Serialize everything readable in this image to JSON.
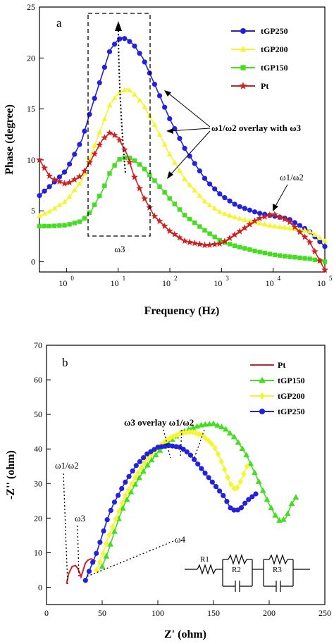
{
  "chart_data": [
    {
      "type": "line",
      "panel_label": "a",
      "xlabel": "Frequency (Hz)",
      "ylabel": "Phase (degree)",
      "xscale": "log",
      "xlim": [
        0.3,
        100000
      ],
      "ylim": [
        -1,
        25
      ],
      "xtick_labels": [
        {
          "base": "10",
          "exp": "0"
        },
        {
          "base": "10",
          "exp": "1"
        },
        {
          "base": "10",
          "exp": "2"
        },
        {
          "base": "10",
          "exp": "3"
        },
        {
          "base": "10",
          "exp": "4"
        },
        {
          "base": "10",
          "exp": "5"
        }
      ],
      "yticks": [
        "0",
        "5",
        "10",
        "15",
        "20",
        "25"
      ],
      "legend_position": "top-right",
      "series": [
        {
          "name": "tGP250",
          "color": "#2222dd",
          "marker": "circle",
          "x": [
            0.3,
            0.5,
            1,
            2,
            3,
            5,
            7,
            10,
            12,
            15,
            20,
            30,
            50,
            100,
            200,
            500,
            1000,
            2000,
            5000,
            10000,
            20000,
            50000,
            100000
          ],
          "y": [
            6.5,
            7.5,
            9.0,
            12.0,
            15.0,
            18.5,
            20.8,
            21.8,
            22.0,
            21.8,
            21.3,
            20.0,
            17.5,
            14.0,
            11.0,
            8.0,
            6.5,
            5.5,
            4.8,
            4.5,
            4.2,
            3.0,
            1.5
          ]
        },
        {
          "name": "tGP200",
          "color": "#f5f532",
          "marker": "triangle",
          "x": [
            0.3,
            0.5,
            1,
            2,
            3,
            5,
            7,
            10,
            15,
            20,
            30,
            50,
            100,
            200,
            500,
            1000,
            2000,
            5000,
            10000,
            20000,
            50000,
            100000
          ],
          "y": [
            4.5,
            5.0,
            6.0,
            8.0,
            10.5,
            13.5,
            15.5,
            16.5,
            17.0,
            16.5,
            15.5,
            13.5,
            10.5,
            8.0,
            5.8,
            4.8,
            4.3,
            3.8,
            3.5,
            3.3,
            3.0,
            2.0
          ]
        },
        {
          "name": "tGP150",
          "color": "#44dd22",
          "marker": "square",
          "x": [
            0.3,
            0.5,
            1,
            2,
            3,
            5,
            7,
            10,
            15,
            20,
            30,
            50,
            100,
            200,
            500,
            1000,
            2000,
            5000,
            10000,
            20000,
            50000,
            100000
          ],
          "y": [
            3.5,
            3.5,
            3.6,
            4.0,
            5.0,
            7.0,
            8.8,
            10.0,
            10.3,
            10.0,
            9.3,
            8.0,
            6.2,
            4.5,
            3.0,
            2.0,
            1.5,
            1.0,
            0.7,
            0.5,
            0.3,
            0.0
          ]
        },
        {
          "name": "Pt",
          "color": "#cc2222",
          "marker": "star",
          "x": [
            0.3,
            0.5,
            1,
            2,
            3,
            5,
            7,
            10,
            15,
            20,
            30,
            50,
            100,
            200,
            500,
            1000,
            2000,
            5000,
            10000,
            20000,
            50000,
            100000
          ],
          "y": [
            10.0,
            8.2,
            7.6,
            8.5,
            10.0,
            12.0,
            12.7,
            12.2,
            10.5,
            8.5,
            6.5,
            4.5,
            3.0,
            2.0,
            1.6,
            1.8,
            2.8,
            4.2,
            4.7,
            4.0,
            2.0,
            -0.8
          ]
        }
      ],
      "annotations": {
        "w3_box": "ω3",
        "overlay": "ω1/ω2 overlay with ω3",
        "w12": "ω1/ω2"
      }
    },
    {
      "type": "scatter",
      "panel_label": "b",
      "xlabel": "Z' (ohm)",
      "ylabel": "-Z'' (ohm)",
      "xlim": [
        0,
        250
      ],
      "ylim": [
        -5,
        70
      ],
      "xticks": [
        "0",
        "50",
        "100",
        "150",
        "200",
        "250"
      ],
      "yticks": [
        "0",
        "10",
        "20",
        "30",
        "40",
        "50",
        "60",
        "70"
      ],
      "legend_position": "top-right",
      "series": [
        {
          "name": "Pt",
          "color": "#cc2222",
          "marker": "line",
          "x": [
            18,
            20,
            23,
            26,
            28,
            30,
            31,
            33,
            35,
            37,
            40,
            42,
            44
          ],
          "y": [
            1,
            4,
            6,
            6.3,
            5.5,
            4,
            3,
            5,
            7,
            7.8,
            8.2,
            8,
            7.5
          ]
        },
        {
          "name": "tGP150",
          "color": "#44dd22",
          "marker": "triangle",
          "x": [
            50,
            55,
            60,
            65,
            70,
            80,
            90,
            100,
            110,
            120,
            130,
            140,
            150,
            160,
            170,
            180,
            190,
            200,
            205,
            210,
            215,
            220,
            224
          ],
          "y": [
            6,
            10,
            15,
            20,
            24,
            30,
            35,
            39,
            42,
            44.5,
            46,
            47,
            47.3,
            46,
            43,
            38,
            31,
            24,
            21,
            19,
            20,
            24,
            26
          ]
        },
        {
          "name": "tGP200",
          "color": "#f5f532",
          "marker": "diamond",
          "x": [
            45,
            50,
            55,
            60,
            65,
            70,
            80,
            90,
            100,
            110,
            120,
            130,
            140,
            150,
            155,
            160,
            165,
            170,
            175,
            180
          ],
          "y": [
            5,
            9,
            14,
            18,
            22,
            26,
            32,
            37,
            40.5,
            43,
            44.5,
            45,
            44,
            41,
            38,
            34,
            30,
            28,
            31,
            35
          ]
        },
        {
          "name": "tGP250",
          "color": "#2222dd",
          "marker": "circle",
          "x": [
            35,
            40,
            45,
            50,
            55,
            60,
            70,
            80,
            90,
            100,
            110,
            120,
            125,
            130,
            140,
            150,
            160,
            165,
            170,
            175,
            180,
            188
          ],
          "y": [
            2,
            6,
            10,
            15,
            20,
            24,
            30,
            35,
            38.5,
            40.5,
            41,
            40.5,
            39.5,
            38,
            34,
            30,
            26,
            23,
            22,
            23,
            25,
            27
          ]
        }
      ],
      "annotations": {
        "overlay": "ω3 overlay ω1/ω2",
        "w12": "ω1/ω2",
        "w3": "ω3",
        "w4": "ω4"
      },
      "circuit": {
        "r1": "R1",
        "r2": "R2",
        "r3": "R3"
      }
    }
  ]
}
